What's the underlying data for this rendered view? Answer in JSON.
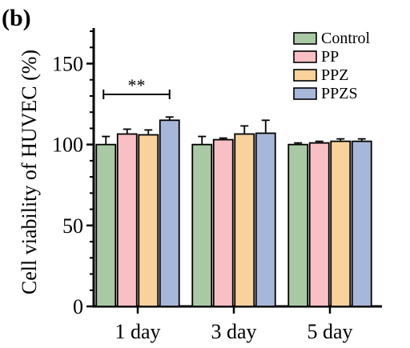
{
  "panel_label": "(b)",
  "chart_data": {
    "type": "bar",
    "ylabel": "Cell viability of  HUVEC (%)",
    "xlabel": "",
    "ylim": [
      0,
      172
    ],
    "yticks": [
      0,
      50,
      100,
      150
    ],
    "categories": [
      "1 day",
      "3 day",
      "5 day"
    ],
    "series": [
      {
        "name": "Control",
        "color": "#a8c9a4",
        "values": [
          100,
          100,
          100
        ],
        "errors": [
          5,
          5,
          1
        ]
      },
      {
        "name": "PP",
        "color": "#f8c0c4",
        "values": [
          106.5,
          103,
          101
        ],
        "errors": [
          3,
          1,
          1
        ]
      },
      {
        "name": "PPZ",
        "color": "#f9d19b",
        "values": [
          106,
          106.5,
          102
        ],
        "errors": [
          3,
          5,
          1.5
        ]
      },
      {
        "name": "PPZS",
        "color": "#a7b7d9",
        "values": [
          115,
          107,
          102
        ],
        "errors": [
          2,
          8,
          1.5
        ]
      }
    ],
    "annotations": [
      {
        "text": "**",
        "category": "1 day",
        "from_series": "Control",
        "to_series": "PPZS",
        "y": 131
      }
    ],
    "legend_position": "top-right",
    "grid": false
  }
}
